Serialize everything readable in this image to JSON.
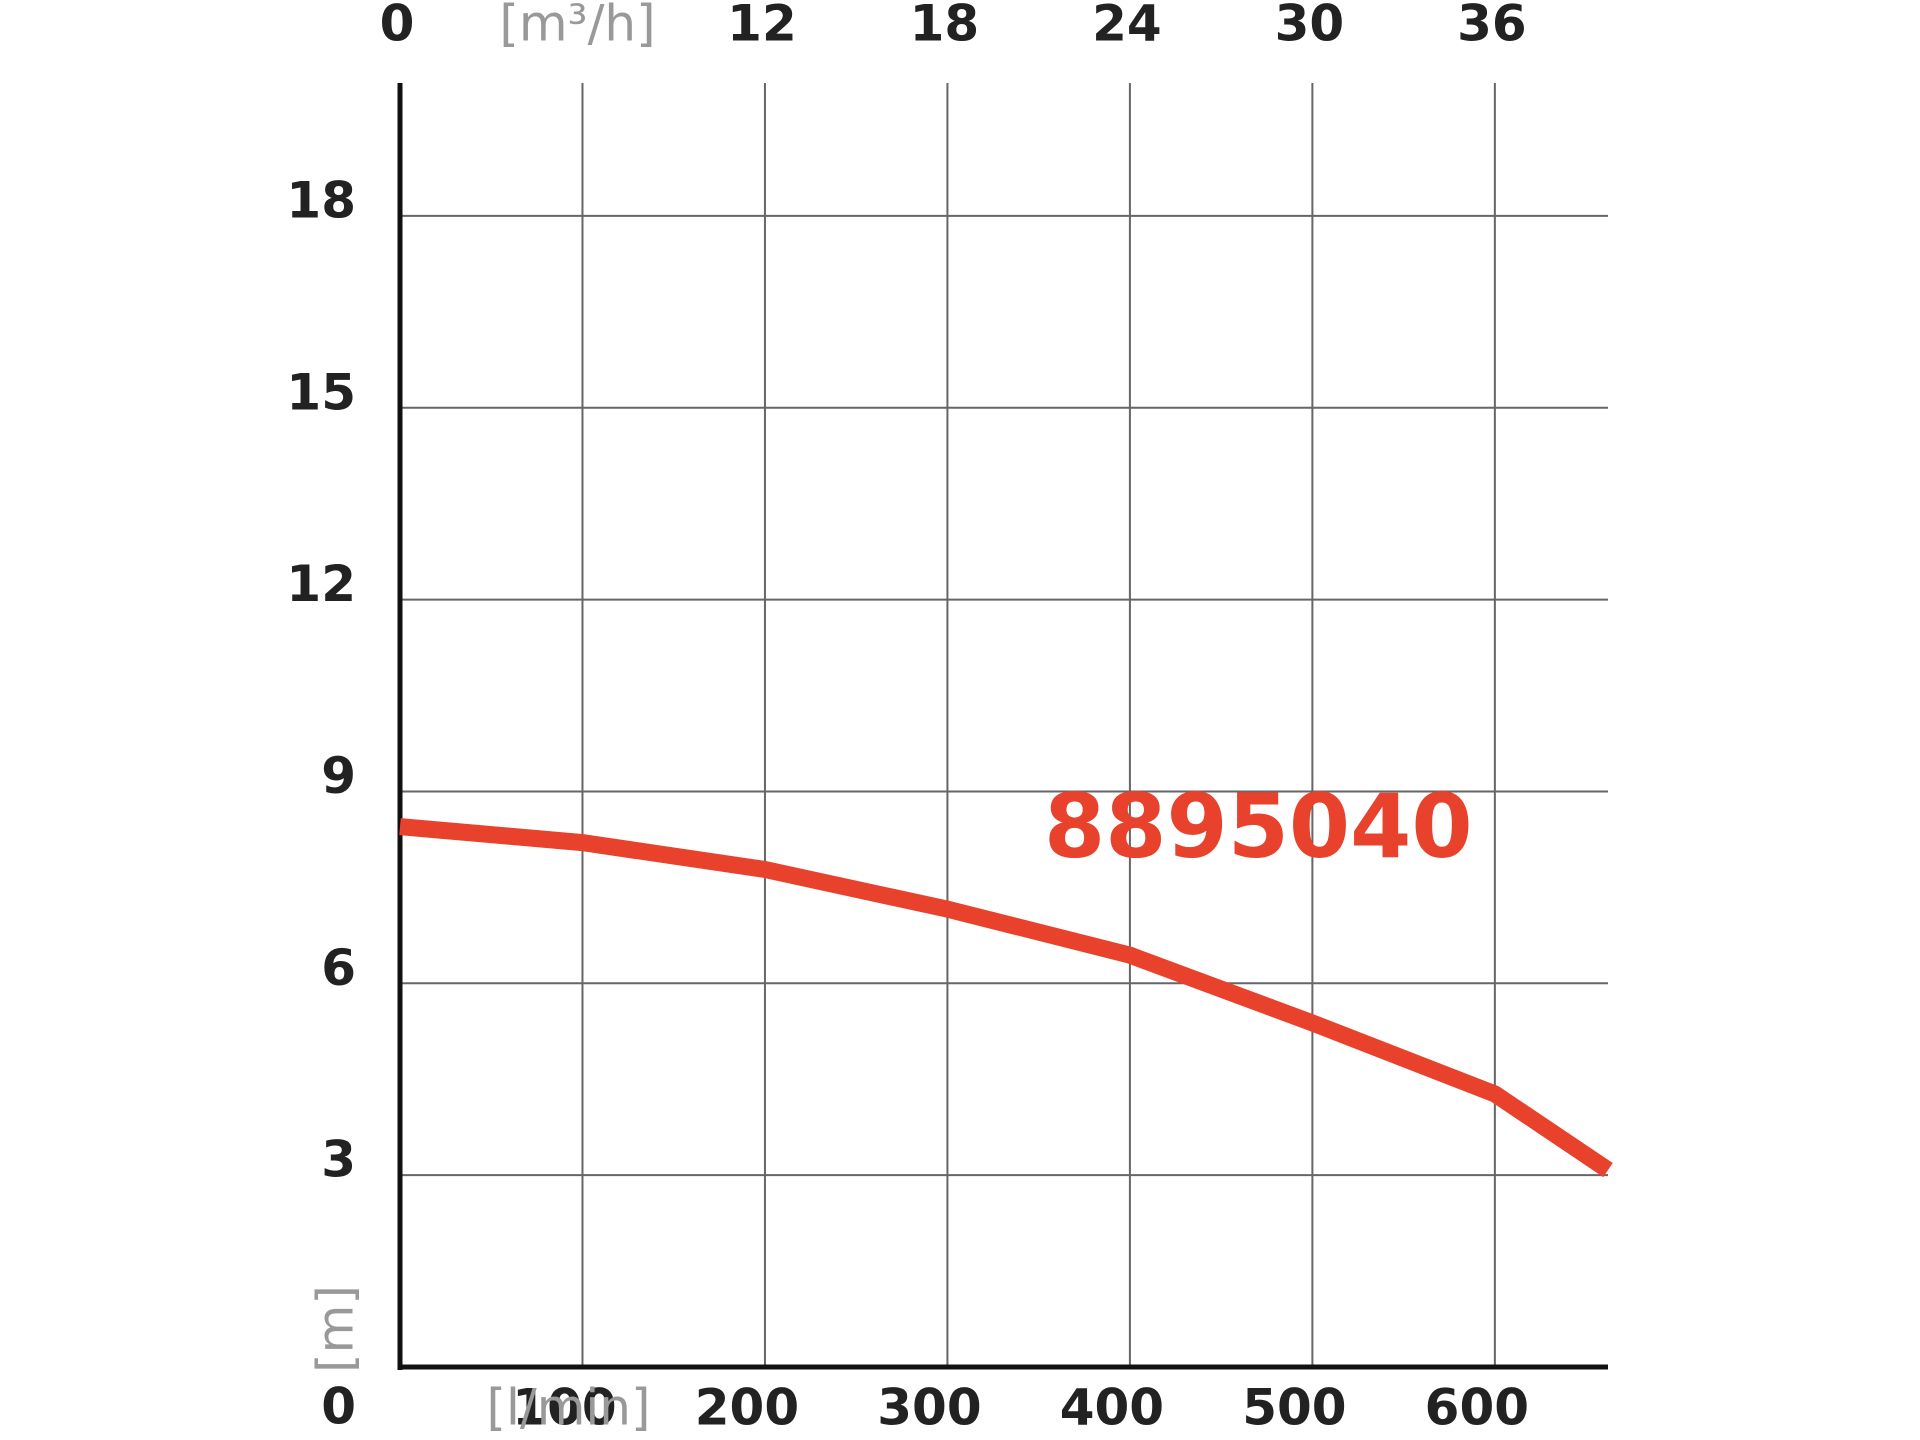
{
  "chart_data": {
    "type": "line",
    "x_label": "[l/min]",
    "x2_label": "[m³/h]",
    "y_label": "[m]",
    "x": [
      0,
      100,
      200,
      300,
      400,
      500,
      600,
      662
    ],
    "series": [
      {
        "name": "8895040",
        "color": "#e8412c",
        "values": [
          8.45,
          8.2,
          7.78,
          7.16,
          6.44,
          5.38,
          4.27,
          3.08
        ]
      }
    ],
    "xlim": [
      0,
      662
    ],
    "xticks": [
      100,
      200,
      300,
      400,
      500,
      600
    ],
    "x2lim": [
      0,
      39.72
    ],
    "x2ticks": [
      0,
      12,
      18,
      24,
      30,
      36
    ],
    "x2_label_at": 6,
    "ylim": [
      0,
      20
    ],
    "yticks": [
      0,
      3,
      6,
      9,
      12,
      15,
      18
    ],
    "grid": true
  }
}
